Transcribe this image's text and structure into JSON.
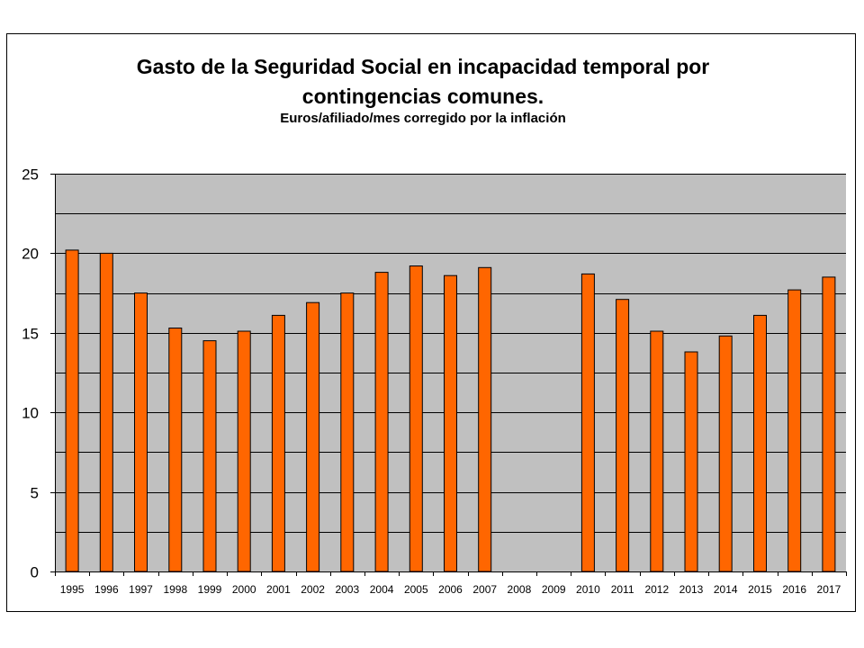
{
  "chart_data": {
    "type": "bar",
    "title_lines": [
      "Gasto de la Seguridad Social en incapacidad temporal por",
      "contingencias comunes."
    ],
    "subtitle": "Euros/afiliado/mes corregido por la inflación",
    "xlabel": "",
    "ylabel": "",
    "ylim": [
      0,
      25
    ],
    "y_ticks": [
      0,
      5,
      10,
      15,
      20,
      25
    ],
    "grid": true,
    "legend": "none",
    "categories": [
      "1995",
      "1996",
      "1997",
      "1998",
      "1999",
      "2000",
      "2001",
      "2002",
      "2003",
      "2004",
      "2005",
      "2006",
      "2007",
      "2008",
      "2009",
      "2010",
      "2011",
      "2012",
      "2013",
      "2014",
      "2015",
      "2016",
      "2017"
    ],
    "values": [
      20.2,
      20.0,
      17.5,
      15.3,
      14.5,
      15.1,
      16.1,
      16.9,
      17.5,
      18.8,
      19.2,
      18.6,
      19.1,
      null,
      null,
      18.7,
      17.1,
      15.1,
      13.8,
      14.8,
      16.1,
      17.7,
      18.5
    ],
    "colors": {
      "bar_fill": "#ff6600",
      "bar_stroke": "#000000",
      "plot_background": "#c0c0c0",
      "gridline": "#000000"
    }
  }
}
